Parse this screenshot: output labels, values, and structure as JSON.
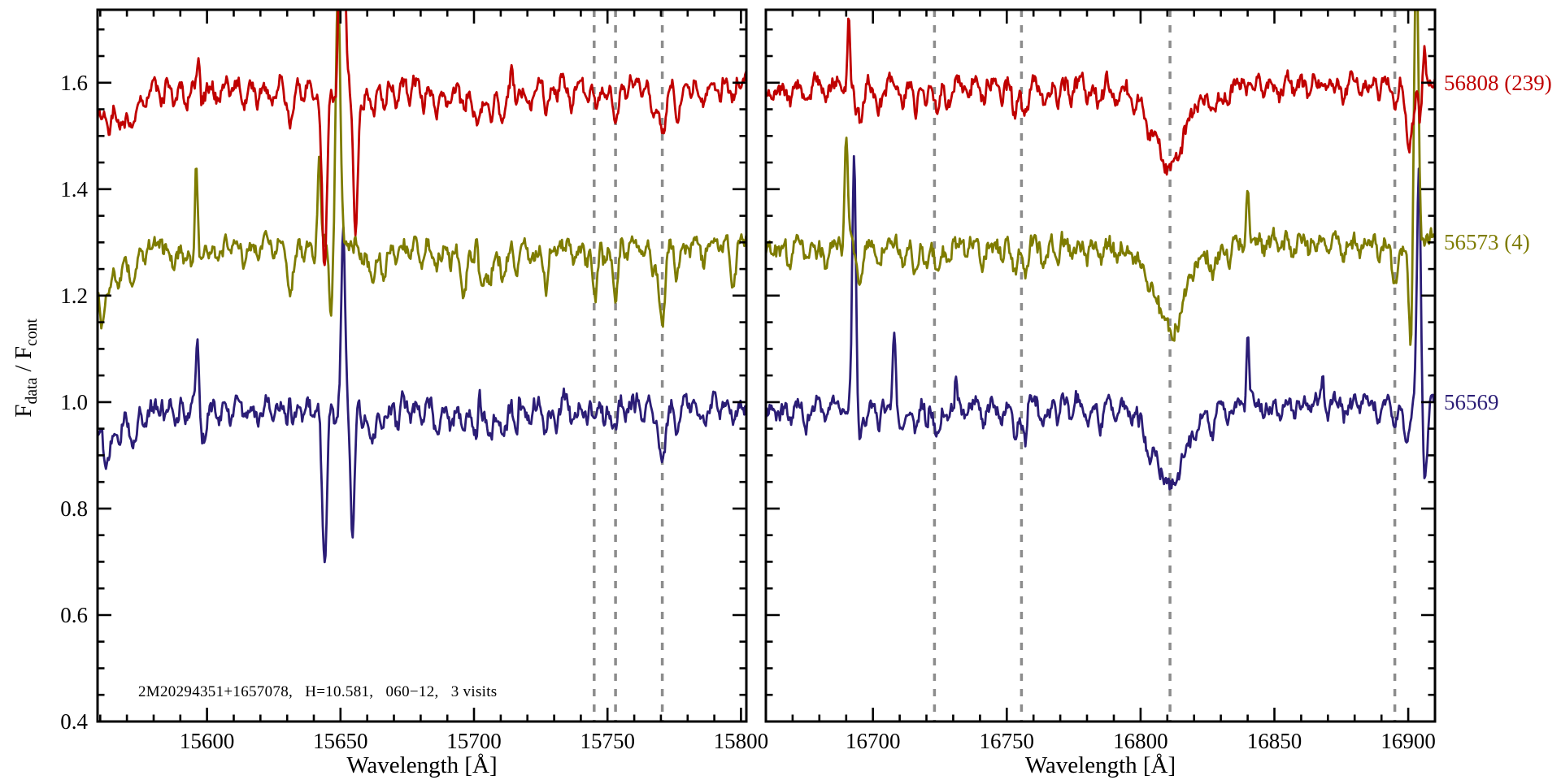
{
  "chart_data": {
    "type": "line",
    "title": "",
    "annotation": "2M20294351+1657078,   H=10.581,   060−12,   3 visits",
    "xlabel": "Wavelength [Å]",
    "ylabel": "F_data / F_cont",
    "ylabel_parts": {
      "f1": "F",
      "sub1": "data",
      "mid": " / F",
      "sub2": "cont"
    },
    "ylim": [
      0.4,
      1.737
    ],
    "yticks": [
      {
        "v": 1.6,
        "label": "1.6"
      },
      {
        "v": 1.4,
        "label": "1.4"
      },
      {
        "v": 1.2,
        "label": "1.2"
      },
      {
        "v": 1.0,
        "label": "1.0"
      },
      {
        "v": 0.8,
        "label": "0.8"
      },
      {
        "v": 0.6,
        "label": "0.6"
      },
      {
        "v": 0.4,
        "label": "0.4"
      }
    ],
    "ytick_major_step": 0.2,
    "ytick_minor_step": 0.05,
    "grid": false,
    "legend_position": "right-of-plot",
    "colors": {
      "background": "#ffffff",
      "axis": "#000000",
      "dashed_line": "#8c8c8c"
    },
    "series": [
      {
        "label": "56808 (239)",
        "mjd": "56808",
        "color": "#c00000",
        "offset": 1.6
      },
      {
        "label": "56573 (4)",
        "mjd": "56573",
        "color": "#7e7c00",
        "offset": 1.3
      },
      {
        "label": "56569",
        "mjd": "56569",
        "color": "#2b1d76",
        "offset": 1.0
      }
    ],
    "noise_rms": 0.011,
    "sample_step_angstrom": 0.35,
    "panels": [
      {
        "xlim": [
          15559,
          15802
        ],
        "xticks": [
          {
            "v": 15600,
            "label": "15600"
          },
          {
            "v": 15650,
            "label": "15650"
          },
          {
            "v": 15700,
            "label": "15700"
          },
          {
            "v": 15750,
            "label": "15750"
          },
          {
            "v": 15800,
            "label": "15800"
          }
        ],
        "xtick_minor_step": 10,
        "dashed_lines": [
          15745,
          15753,
          15770.5
        ],
        "continuum": {
          "slope": 4e-05,
          "pivot": 15700,
          "broad_dips": [
            [
              15559,
              0.045,
              5
            ],
            [
              15570,
              0.015,
              8
            ],
            [
              15704,
              0.02,
              13
            ]
          ]
        },
        "absorption": [
          [
            15563,
            0.05,
            1.2
          ],
          [
            15567,
            0.05,
            1.0
          ],
          [
            15572,
            0.06,
            1.2
          ],
          [
            15577,
            0.03,
            0.8
          ],
          [
            15583,
            0.03,
            0.8
          ],
          [
            15588,
            0.04,
            1.0
          ],
          [
            15592,
            0.03,
            0.8
          ],
          [
            15598,
            0.04,
            1.0
          ],
          [
            15604,
            0.03,
            0.8
          ],
          [
            15609,
            0.02,
            0.8
          ],
          [
            15614,
            0.03,
            0.8
          ],
          [
            15619,
            0.03,
            0.8
          ],
          [
            15625,
            0.03,
            0.8
          ],
          [
            15631,
            0.07,
            1.2
          ],
          [
            15636,
            0.03,
            0.8
          ],
          [
            15640,
            0.04,
            0.8
          ],
          [
            15648,
            0.04,
            0.8
          ],
          [
            15658,
            0.03,
            0.8
          ],
          [
            15662,
            0.07,
            1.2
          ],
          [
            15666,
            0.05,
            1.0
          ],
          [
            15671,
            0.04,
            0.8
          ],
          [
            15676,
            0.03,
            0.8
          ],
          [
            15681,
            0.03,
            0.8
          ],
          [
            15686,
            0.04,
            1.0
          ],
          [
            15691,
            0.04,
            1.0
          ],
          [
            15696,
            0.04,
            1.0
          ],
          [
            15701,
            0.05,
            1.2
          ],
          [
            15706,
            0.04,
            1.0
          ],
          [
            15711,
            0.05,
            1.0
          ],
          [
            15716,
            0.03,
            0.8
          ],
          [
            15721,
            0.03,
            0.8
          ],
          [
            15727,
            0.05,
            0.9
          ],
          [
            15731,
            0.03,
            0.8
          ],
          [
            15737,
            0.04,
            1.0
          ],
          [
            15742,
            0.04,
            0.8
          ],
          [
            15745.5,
            0.05,
            0.9
          ],
          [
            15749,
            0.03,
            0.8
          ],
          [
            15753,
            0.06,
            1.0
          ],
          [
            15757,
            0.03,
            0.8
          ],
          [
            15763,
            0.03,
            0.8
          ],
          [
            15767,
            0.04,
            0.8
          ],
          [
            15770.5,
            0.1,
            1.4
          ],
          [
            15776,
            0.06,
            1.0
          ],
          [
            15781,
            0.03,
            0.8
          ],
          [
            15786,
            0.04,
            1.0
          ],
          [
            15792,
            0.03,
            0.8
          ],
          [
            15797,
            0.04,
            1.0
          ]
        ],
        "series_extra": [
          {
            "spikes": [
              [
                15597,
                0.06,
                0.45
              ],
              [
                15650.6,
                0.6,
                0.9
              ],
              [
                15714,
                0.04,
                0.4
              ]
            ],
            "dips": [
              [
                15569,
                0.03,
                0.8
              ],
              [
                15644,
                0.33,
                0.95
              ],
              [
                15655.6,
                0.28,
                0.85
              ]
            ]
          },
          {
            "spikes": [
              [
                15583,
                0.05,
                0.4
              ],
              [
                15596,
                0.16,
                0.5
              ],
              [
                15642,
                0.16,
                0.6
              ],
              [
                15649,
                0.5,
                0.85
              ],
              [
                15701,
                0.07,
                0.45
              ],
              [
                15772,
                0.03,
                0.4
              ]
            ],
            "dips": [
              [
                15560.5,
                0.1,
                0.9
              ],
              [
                15594,
                0.05,
                0.7
              ],
              [
                15646.3,
                0.12,
                0.7
              ],
              [
                15696,
                0.05,
                1.0
              ],
              [
                15704,
                0.06,
                1.0
              ],
              [
                15727,
                0.04,
                0.9
              ],
              [
                15745,
                0.05,
                0.9
              ],
              [
                15753,
                0.05,
                0.9
              ],
              [
                15770.5,
                0.05,
                1.2
              ],
              [
                15797,
                0.05,
                0.9
              ]
            ]
          },
          {
            "spikes": [
              [
                15583,
                0.04,
                0.4
              ],
              [
                15596.5,
                0.13,
                0.5
              ],
              [
                15631,
                0.09,
                0.45
              ],
              [
                15651,
                0.33,
                0.7
              ],
              [
                15702,
                0.06,
                0.4
              ],
              [
                15717,
                0.05,
                0.4
              ],
              [
                15746,
                0.03,
                0.35
              ]
            ],
            "dips": [
              [
                15562,
                0.03,
                0.8
              ],
              [
                15599,
                0.04,
                0.7
              ],
              [
                15644,
                0.3,
                0.9
              ],
              [
                15654.5,
                0.24,
                0.8
              ]
            ]
          }
        ]
      },
      {
        "xlim": [
          16660,
          16910
        ],
        "xticks": [
          {
            "v": 16700,
            "label": "16700"
          },
          {
            "v": 16750,
            "label": "16750"
          },
          {
            "v": 16800,
            "label": "16800"
          },
          {
            "v": 16850,
            "label": "16850"
          },
          {
            "v": 16900,
            "label": "16900"
          }
        ],
        "xtick_minor_step": 10,
        "dashed_lines": [
          16723,
          16755.5,
          16811,
          16895
        ],
        "continuum": {
          "slope": 3e-05,
          "pivot": 16790,
          "broad_dips": [
            [
              16660,
              0.02,
              5
            ]
          ]
        },
        "absorption": [
          [
            16669,
            0.03,
            1.0
          ],
          [
            16675,
            0.04,
            1.0
          ],
          [
            16682,
            0.03,
            1.0
          ],
          [
            16689,
            0.03,
            0.8
          ],
          [
            16695,
            0.07,
            1.2
          ],
          [
            16702,
            0.04,
            1.0
          ],
          [
            16711,
            0.04,
            1.0
          ],
          [
            16716,
            0.05,
            1.0
          ],
          [
            16720,
            0.04,
            0.8
          ],
          [
            16724,
            0.06,
            1.0
          ],
          [
            16728,
            0.04,
            0.8
          ],
          [
            16735,
            0.03,
            0.8
          ],
          [
            16741,
            0.04,
            1.0
          ],
          [
            16748,
            0.03,
            0.8
          ],
          [
            16753,
            0.06,
            1.0
          ],
          [
            16757,
            0.06,
            1.0
          ],
          [
            16764,
            0.05,
            1.2
          ],
          [
            16769,
            0.03,
            0.8
          ],
          [
            16774,
            0.02,
            0.8
          ],
          [
            16780,
            0.03,
            0.8
          ],
          [
            16785,
            0.04,
            1.0
          ],
          [
            16791,
            0.03,
            0.8
          ],
          [
            16797,
            0.02,
            0.8
          ],
          [
            16803,
            0.03,
            1.0
          ],
          [
            16811,
            0.115,
            4.5
          ],
          [
            16812,
            0.05,
            11
          ],
          [
            16827,
            0.04,
            1.0
          ],
          [
            16833,
            0.03,
            0.8
          ],
          [
            16839,
            0.02,
            0.8
          ],
          [
            16846,
            0.02,
            0.8
          ],
          [
            16852,
            0.03,
            0.8
          ],
          [
            16857,
            0.02,
            0.8
          ],
          [
            16863,
            0.02,
            0.8
          ],
          [
            16870,
            0.02,
            0.8
          ],
          [
            16876,
            0.03,
            0.8
          ],
          [
            16882,
            0.02,
            0.8
          ],
          [
            16889,
            0.03,
            0.8
          ],
          [
            16895,
            0.05,
            1.0
          ],
          [
            16900,
            0.03,
            0.8
          ]
        ],
        "series_extra": [
          {
            "spikes": [
              [
                16691,
                0.13,
                0.5
              ],
              [
                16906,
                0.07,
                0.5
              ]
            ],
            "dips": [
              [
                16899,
                0.05,
                0.9
              ],
              [
                16901,
                0.09,
                1.0
              ],
              [
                16904.5,
                0.07,
                0.7
              ]
            ]
          },
          {
            "spikes": [
              [
                16690,
                0.22,
                0.6
              ],
              [
                16840,
                0.12,
                0.5
              ],
              [
                16903,
                0.55,
                0.8
              ]
            ],
            "dips": [
              [
                16895,
                0.05,
                1.1
              ],
              [
                16901,
                0.2,
                0.7
              ]
            ]
          },
          {
            "spikes": [
              [
                16693,
                0.48,
                0.7
              ],
              [
                16708,
                0.12,
                0.5
              ],
              [
                16731,
                0.05,
                0.4
              ],
              [
                16758,
                0.03,
                0.35
              ],
              [
                16840,
                0.12,
                0.5
              ],
              [
                16868,
                0.03,
                0.35
              ],
              [
                16904,
                0.42,
                0.7
              ]
            ],
            "dips": [
              [
                16697.5,
                0.04,
                0.7
              ],
              [
                16899,
                0.05,
                0.8
              ],
              [
                16906.3,
                0.15,
                0.8
              ]
            ]
          }
        ]
      }
    ]
  }
}
